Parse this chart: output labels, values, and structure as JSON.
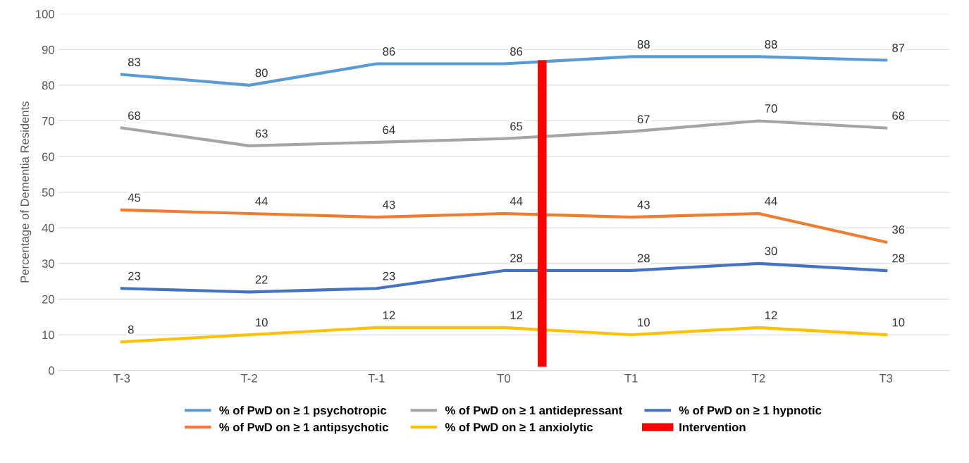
{
  "chart_data": {
    "type": "line",
    "ylabel": "Percentage of Dementia Residents",
    "categories": [
      "T-3",
      "T-2",
      "T-1",
      "T0",
      "T1",
      "T2",
      "T3"
    ],
    "series": [
      {
        "name": "% of PwD on ≥ 1 psychotropic",
        "color": "#5b9bd5",
        "values": [
          83,
          80,
          86,
          86,
          88,
          88,
          87
        ]
      },
      {
        "name": "% of PwD on ≥ 1 antipsychotic",
        "color": "#ed7d31",
        "values": [
          45,
          44,
          43,
          44,
          43,
          44,
          36
        ]
      },
      {
        "name": "% of PwD on ≥ 1 antidepressant",
        "color": "#a5a5a5",
        "values": [
          68,
          63,
          64,
          65,
          67,
          70,
          68
        ]
      },
      {
        "name": "% of PwD on ≥ 1 anxiolytic",
        "color": "#ffc000",
        "values": [
          8,
          10,
          12,
          12,
          10,
          12,
          10
        ]
      },
      {
        "name": "% of PwD on ≥ 1 hypnotic",
        "color": "#4472c4",
        "values": [
          23,
          22,
          23,
          28,
          28,
          30,
          28
        ]
      }
    ],
    "annotations": [
      "Intervention"
    ],
    "ylim": [
      0,
      100
    ],
    "yticks": [
      0,
      10,
      20,
      30,
      40,
      50,
      60,
      70,
      80,
      90,
      100
    ],
    "grid": "y",
    "legend": "bottom",
    "marker": "none",
    "line_style": "solid",
    "data_labels": true
  }
}
